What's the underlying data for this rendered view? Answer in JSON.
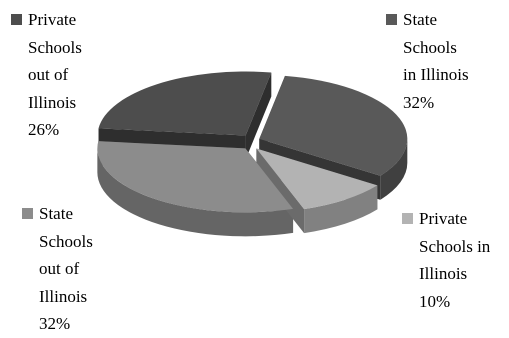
{
  "chart_data": {
    "type": "pie",
    "style": "3d-exploded",
    "categories": [
      "State Schools in Illinois",
      "Private Schools in Illinois",
      "State Schools out of Illinois",
      "Private Schools out of Illinois"
    ],
    "values": [
      32,
      10,
      32,
      26
    ],
    "value_labels": [
      "32%",
      "10%",
      "32%",
      "26%"
    ],
    "colors": [
      "#595959",
      "#b3b3b3",
      "#8c8c8c",
      "#4d4d4d"
    ],
    "legend_placement": "around",
    "title": "",
    "label_lines": [
      [
        "State",
        "Schools",
        "in Illinois",
        "32%"
      ],
      [
        "Private",
        "Schools in",
        "Illinois",
        "10%"
      ],
      [
        "State",
        "Schools",
        "out of",
        "Illinois",
        "32%"
      ],
      [
        "Private",
        "Schools",
        "out of",
        "Illinois",
        "26%"
      ]
    ]
  }
}
